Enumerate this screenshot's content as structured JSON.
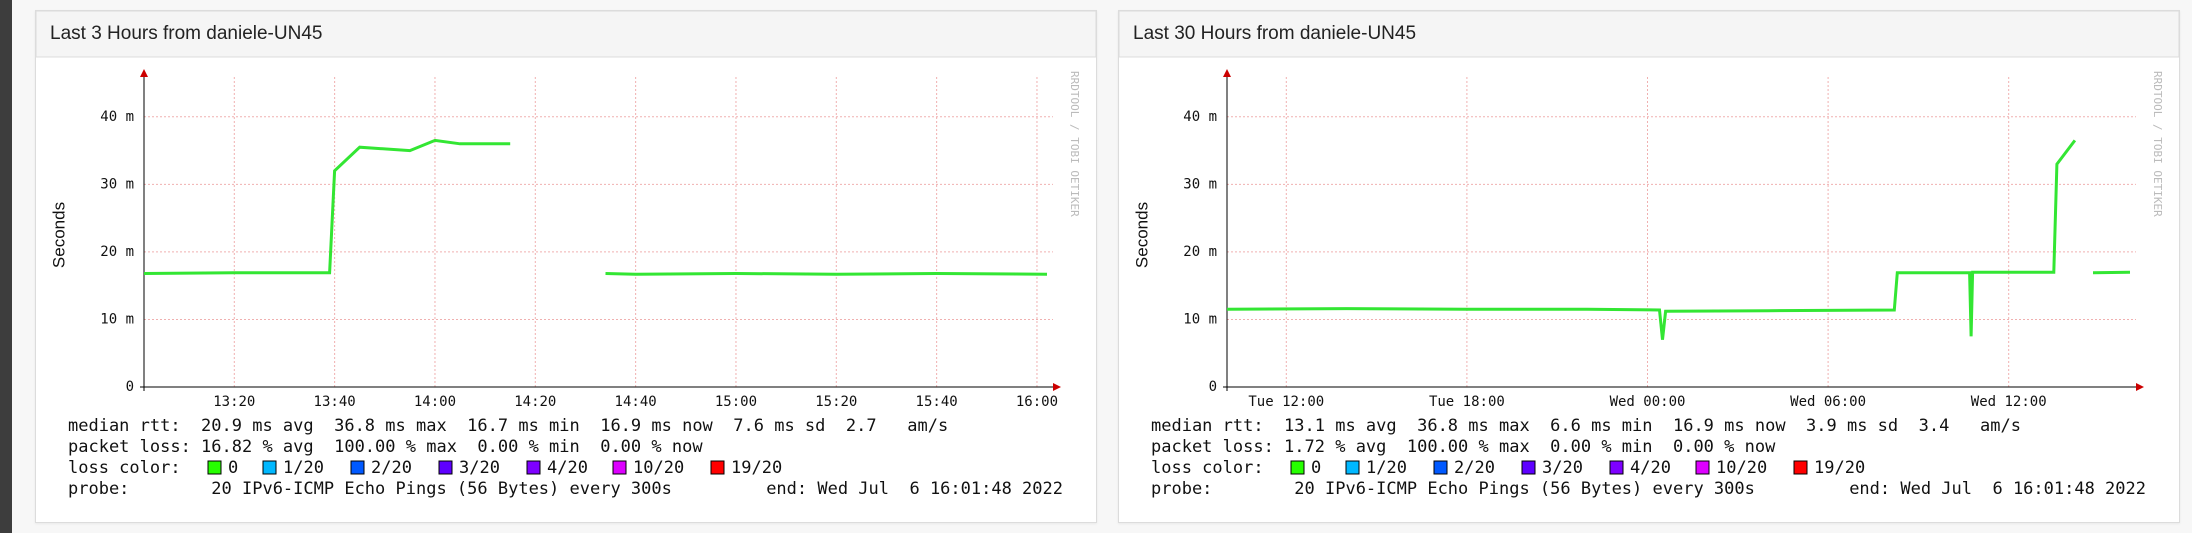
{
  "chart_data": [
    {
      "type": "line",
      "title": "Last 3 Hours from daniele-UN45",
      "ylabel": "Seconds",
      "annotation": "RRDTOOL / TOBI OETIKER",
      "xlim": [
        782,
        962
      ],
      "xticks": [
        {
          "value": 800,
          "label": "13:20"
        },
        {
          "value": 820,
          "label": "13:40"
        },
        {
          "value": 840,
          "label": "14:00"
        },
        {
          "value": 860,
          "label": "14:20"
        },
        {
          "value": 880,
          "label": "14:40"
        },
        {
          "value": 900,
          "label": "15:00"
        },
        {
          "value": 920,
          "label": "15:20"
        },
        {
          "value": 940,
          "label": "15:40"
        },
        {
          "value": 960,
          "label": "16:00"
        }
      ],
      "ylim": [
        0,
        0.045
      ],
      "yticks": [
        0,
        {
          "value": 0.01,
          "label": "10 m"
        },
        {
          "value": 0.02,
          "label": "20 m"
        },
        {
          "value": 0.03,
          "label": "30 m"
        },
        {
          "value": 0.04,
          "label": "40 m"
        }
      ],
      "grid": true,
      "color": "#33e633",
      "x": [
        782,
        800,
        819,
        820,
        825,
        835,
        840,
        845,
        855,
        856,
        874,
        880,
        900,
        920,
        940,
        962
      ],
      "values": [
        0.0168,
        0.0169,
        0.0169,
        0.032,
        0.0355,
        0.035,
        0.0365,
        0.036,
        0.036,
        null,
        0.0168,
        0.0167,
        0.0168,
        0.0167,
        0.0168,
        0.0167
      ],
      "stats": [
        "median rtt:  20.9 ms avg  36.8 ms max  16.7 ms min  16.9 ms now  7.6 ms sd  2.7   am/s",
        "packet loss: 16.82 % avg  100.00 % max  0.00 % min  0.00 % now"
      ],
      "loss_label": "loss color:",
      "loss_colors": [
        {
          "label": "0",
          "color": "#26ff00"
        },
        {
          "label": "1/20",
          "color": "#00b8ff"
        },
        {
          "label": "2/20",
          "color": "#0059ff"
        },
        {
          "label": "3/20",
          "color": "#5e00ff"
        },
        {
          "label": "4/20",
          "color": "#7e00ff"
        },
        {
          "label": "10/20",
          "color": "#dd00ff"
        },
        {
          "label": "19/20",
          "color": "#ff0000"
        }
      ],
      "probe": "probe:        20 IPv6-ICMP Echo Pings (56 Bytes) every 300s",
      "end": "end: Wed Jul  6 16:01:48 2022"
    },
    {
      "type": "line",
      "title": "Last 30 Hours from daniele-UN45",
      "ylabel": "Seconds",
      "annotation": "RRDTOOL / TOBI OETIKER",
      "xlim": [
        10.03,
        40.03
      ],
      "xticks": [
        {
          "value": 12,
          "label": "Tue 12:00"
        },
        {
          "value": 18,
          "label": "Tue 18:00"
        },
        {
          "value": 24,
          "label": "Wed 00:00"
        },
        {
          "value": 30,
          "label": "Wed 06:00"
        },
        {
          "value": 36,
          "label": "Wed 12:00"
        }
      ],
      "ylim": [
        0,
        0.045
      ],
      "yticks": [
        0,
        {
          "value": 0.01,
          "label": "10 m"
        },
        {
          "value": 0.02,
          "label": "20 m"
        },
        {
          "value": 0.03,
          "label": "30 m"
        },
        {
          "value": 0.04,
          "label": "40 m"
        }
      ],
      "grid": true,
      "color": "#33e633",
      "x": [
        10.03,
        14,
        18,
        22,
        24.4,
        24.5,
        24.6,
        28,
        32.2,
        32.3,
        34.7,
        34.75,
        34.8,
        37.5,
        37.6,
        38.2,
        38.3,
        38.8,
        40.03
      ],
      "values": [
        0.0115,
        0.0116,
        0.0115,
        0.0115,
        0.0114,
        0.007,
        0.0112,
        0.0113,
        0.0114,
        0.0169,
        0.0169,
        0.0075,
        0.017,
        0.017,
        0.033,
        0.0365,
        null,
        0.0169,
        0.017
      ],
      "stats": [
        "median rtt:  13.1 ms avg  36.8 ms max  6.6 ms min  16.9 ms now  3.9 ms sd  3.4   am/s",
        "packet loss: 1.72 % avg  100.00 % max  0.00 % min  0.00 % now"
      ],
      "loss_label": "loss color:",
      "loss_colors": [
        {
          "label": "0",
          "color": "#26ff00"
        },
        {
          "label": "1/20",
          "color": "#00b8ff"
        },
        {
          "label": "2/20",
          "color": "#0059ff"
        },
        {
          "label": "3/20",
          "color": "#5e00ff"
        },
        {
          "label": "4/20",
          "color": "#7e00ff"
        },
        {
          "label": "10/20",
          "color": "#dd00ff"
        },
        {
          "label": "19/20",
          "color": "#ff0000"
        }
      ],
      "probe": "probe:        20 IPv6-ICMP Echo Pings (56 Bytes) every 300s",
      "end": "end: Wed Jul  6 16:01:48 2022"
    }
  ]
}
